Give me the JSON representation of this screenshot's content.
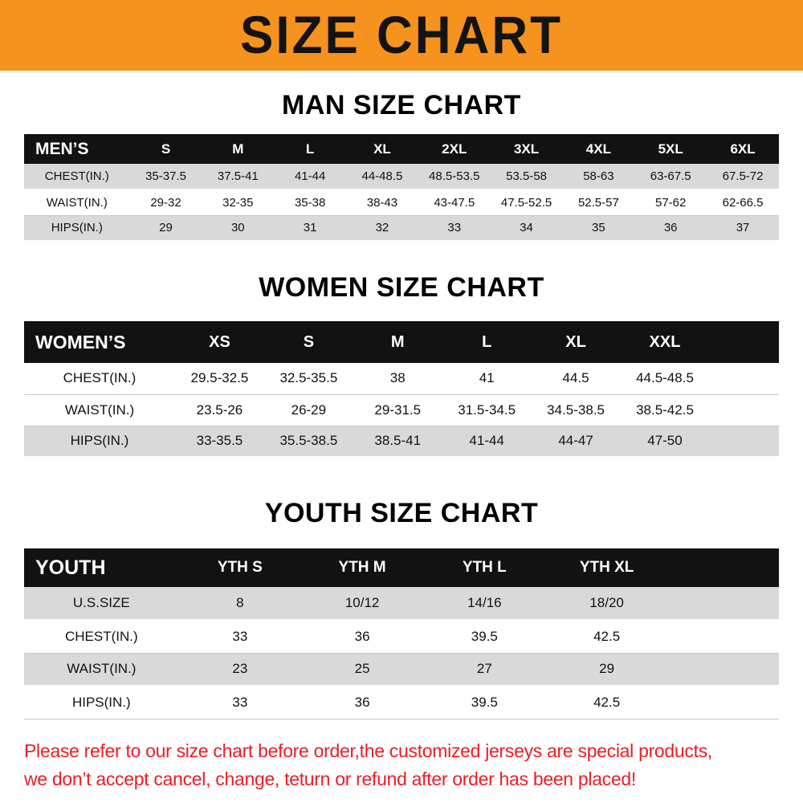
{
  "banner": {
    "title": "SIZE CHART"
  },
  "sections": [
    {
      "heading": "MAN SIZE CHART",
      "table": {
        "header": [
          "MEN’S",
          "S",
          "M",
          "L",
          "XL",
          "2XL",
          "3XL",
          "4XL",
          "5XL",
          "6XL"
        ],
        "rows": [
          {
            "label": "CHEST(IN.)",
            "shaded": true,
            "values": [
              "35-37.5",
              "37.5-41",
              "41-44",
              "44-48.5",
              "48.5-53.5",
              "53.5-58",
              "58-63",
              "63-67.5",
              "67.5-72"
            ]
          },
          {
            "label": "WAIST(IN.)",
            "shaded": false,
            "values": [
              "29-32",
              "32-35",
              "35-38",
              "38-43",
              "43-47.5",
              "47.5-52.5",
              "52.5-57",
              "57-62",
              "62-66.5"
            ]
          },
          {
            "label": "HIPS(IN.)",
            "shaded": true,
            "values": [
              "29",
              "30",
              "31",
              "32",
              "33",
              "34",
              "35",
              "36",
              "37"
            ]
          }
        ]
      }
    },
    {
      "heading": "WOMEN SIZE CHART",
      "table": {
        "header": [
          "WOMEN’S",
          "XS",
          "S",
          "M",
          "L",
          "XL",
          "XXL"
        ],
        "rows": [
          {
            "label": "CHEST(IN.)",
            "shaded": false,
            "values": [
              "29.5-32.5",
              "32.5-35.5",
              "38",
              "41",
              "44.5",
              "44.5-48.5"
            ]
          },
          {
            "label": "WAIST(IN.)",
            "shaded": false,
            "values": [
              "23.5-26",
              "26-29",
              "29-31.5",
              "31.5-34.5",
              "34.5-38.5",
              "38.5-42.5"
            ]
          },
          {
            "label": "HIPS(IN.)",
            "shaded": true,
            "values": [
              "33-35.5",
              "35.5-38.5",
              "38.5-41",
              "41-44",
              "44-47",
              "47-50"
            ]
          }
        ]
      }
    },
    {
      "heading": "YOUTH SIZE CHART",
      "table": {
        "header": [
          "YOUTH",
          "YTH S",
          "YTH M",
          "YTH L",
          "YTH XL"
        ],
        "rows": [
          {
            "label": "U.S.SIZE",
            "shaded": true,
            "values": [
              "8",
              "10/12",
              "14/16",
              "18/20"
            ]
          },
          {
            "label": "CHEST(IN.)",
            "shaded": false,
            "values": [
              "33",
              "36",
              "39.5",
              "42.5"
            ]
          },
          {
            "label": "WAIST(IN.)",
            "shaded": true,
            "values": [
              "23",
              "25",
              "27",
              "29"
            ]
          },
          {
            "label": "HIPS(IN.)",
            "shaded": false,
            "values": [
              "33",
              "36",
              "39.5",
              "42.5"
            ]
          }
        ]
      }
    }
  ],
  "footer": {
    "lines": [
      "Please refer to our size chart before order,the customized jerseys are special products,",
      "we don’t accept cancel, change, teturn or refund after order has been placed!"
    ]
  },
  "colors": {
    "banner_orange": "#f6921e",
    "table_header_black": "#121212",
    "row_shade_gray": "#d9d9d9",
    "footer_red": "#ed1c24"
  }
}
